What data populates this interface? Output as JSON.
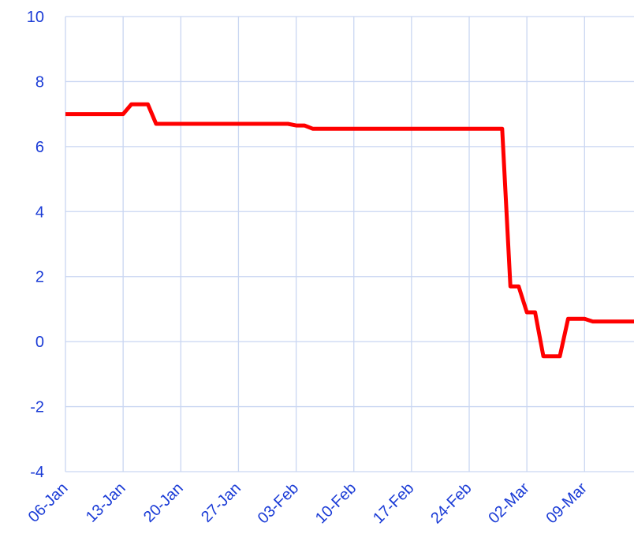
{
  "chart_data": {
    "type": "line",
    "categories": [
      "06-Jan",
      null,
      null,
      null,
      null,
      null,
      null,
      "13-Jan",
      null,
      null,
      null,
      null,
      null,
      null,
      "20-Jan",
      null,
      null,
      null,
      null,
      null,
      null,
      "27-Jan",
      null,
      null,
      null,
      null,
      null,
      null,
      "03-Feb",
      null,
      null,
      null,
      null,
      null,
      null,
      "10-Feb",
      null,
      null,
      null,
      null,
      null,
      null,
      "17-Feb",
      null,
      null,
      null,
      null,
      null,
      null,
      "24-Feb",
      null,
      null,
      null,
      null,
      null,
      null,
      "02-Mar",
      null,
      null,
      null,
      null,
      null,
      null,
      "09-Mar",
      null,
      null,
      null,
      null,
      null,
      null
    ],
    "series": [
      {
        "color": "#ff0000",
        "values": [
          7.0,
          7.0,
          7.0,
          7.0,
          7.0,
          7.0,
          7.0,
          7.0,
          7.3,
          7.3,
          7.3,
          6.7,
          6.7,
          6.7,
          6.7,
          6.7,
          6.7,
          6.7,
          6.7,
          6.7,
          6.7,
          6.7,
          6.7,
          6.7,
          6.7,
          6.7,
          6.7,
          6.7,
          6.65,
          6.65,
          6.55,
          6.55,
          6.55,
          6.55,
          6.55,
          6.55,
          6.55,
          6.55,
          6.55,
          6.55,
          6.55,
          6.55,
          6.55,
          6.55,
          6.55,
          6.55,
          6.55,
          6.55,
          6.55,
          6.55,
          6.55,
          6.55,
          6.55,
          6.55,
          1.7,
          1.7,
          0.9,
          0.9,
          -0.45,
          -0.45,
          -0.45,
          0.7,
          0.7,
          0.7,
          0.62,
          0.62,
          0.62,
          0.62,
          0.62,
          0.62
        ]
      }
    ],
    "ylim": [
      -4,
      10
    ],
    "yticks": [
      -4,
      -2,
      0,
      2,
      4,
      6,
      8,
      10
    ],
    "grid": true
  }
}
